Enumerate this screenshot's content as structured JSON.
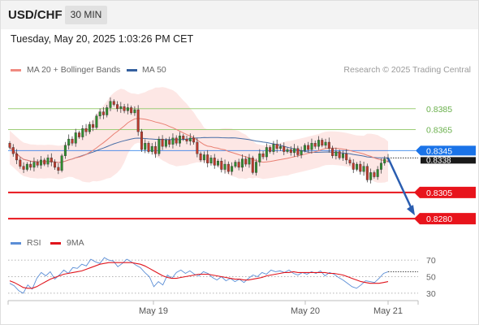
{
  "header": {
    "symbol": "USD/CHF",
    "timeframe": "30 MIN",
    "timestamp": "Tuesday, May 20, 2025 1:03:26 PM CET"
  },
  "legend": {
    "ma20_label": "MA 20 + Bollinger Bands",
    "ma50_label": "MA 50",
    "credit": "Research © 2025 Trading Central",
    "rsi_label": "RSI",
    "rsi_ma_label": "9MA"
  },
  "colors": {
    "ma20": "#e98073",
    "ma50": "#34609f",
    "bands_fill": "#fde3e0",
    "candle_up": "#2f8f2f",
    "candle_down": "#c0392b",
    "resistance": "#9dcd77",
    "support": "#e8141c",
    "current_price": "#1a73e8",
    "rsi": "#5b8ed6",
    "rsi_ma": "#e0141c",
    "forecast_arrow": "#2a5db0"
  },
  "chart_data": [
    {
      "type": "candlestick",
      "title": "USD/CHF",
      "timeframe": "30 MIN",
      "xlabels": [
        "May 19",
        "May 20",
        "May 21"
      ],
      "ylim": [
        0.827,
        0.8398
      ],
      "current_price": 0.8338,
      "levels": [
        {
          "label": "0.8385",
          "value": 0.8385,
          "kind": "resistance"
        },
        {
          "label": "0.8365",
          "value": 0.8365,
          "kind": "resistance"
        },
        {
          "label": "0.8345",
          "value": 0.8345,
          "kind": "pivot"
        },
        {
          "label": "0.8305",
          "value": 0.8305,
          "kind": "support"
        },
        {
          "label": "0.8280",
          "value": 0.828,
          "kind": "support"
        }
      ],
      "current_price_label": "0.8338",
      "forecast": {
        "from": 0.8338,
        "to": 0.828,
        "direction": "down"
      },
      "closes": [
        0.8348,
        0.8342,
        0.8336,
        0.833,
        0.8327,
        0.8332,
        0.8329,
        0.8334,
        0.8331,
        0.8336,
        0.8332,
        0.8338,
        0.8334,
        0.8329,
        0.8326,
        0.834,
        0.835,
        0.8356,
        0.8352,
        0.8362,
        0.8358,
        0.8366,
        0.8363,
        0.837,
        0.8367,
        0.8378,
        0.8382,
        0.8379,
        0.8386,
        0.8392,
        0.8389,
        0.8385,
        0.8387,
        0.8383,
        0.8386,
        0.8381,
        0.8384,
        0.8363,
        0.8346,
        0.8352,
        0.8344,
        0.8349,
        0.8342,
        0.8356,
        0.8349,
        0.8355,
        0.8351,
        0.8357,
        0.8352,
        0.8359,
        0.8356,
        0.8354,
        0.8357,
        0.8353,
        0.8342,
        0.8336,
        0.8341,
        0.8333,
        0.8338,
        0.8331,
        0.8335,
        0.8327,
        0.8332,
        0.8325,
        0.833,
        0.8334,
        0.8329,
        0.8337,
        0.8332,
        0.8338,
        0.8324,
        0.8334,
        0.8342,
        0.8339,
        0.8348,
        0.8344,
        0.8351,
        0.8347,
        0.8349,
        0.8344,
        0.8346,
        0.8343,
        0.8347,
        0.8341,
        0.8345,
        0.835,
        0.8346,
        0.8352,
        0.8349,
        0.8355,
        0.835,
        0.8353,
        0.8347,
        0.834,
        0.8344,
        0.8338,
        0.8342,
        0.8336,
        0.8333,
        0.8327,
        0.8332,
        0.8325,
        0.833,
        0.8317,
        0.8324,
        0.832,
        0.8327,
        0.8333,
        0.8337,
        0.8338
      ]
    },
    {
      "type": "line",
      "title": "RSI",
      "series": [
        {
          "name": "RSI",
          "values": [
            42,
            39,
            33,
            30,
            40,
            35,
            48,
            55,
            51,
            56,
            47,
            52,
            58,
            54,
            61,
            60,
            65,
            63,
            71,
            68,
            66,
            73,
            70,
            69,
            62,
            66,
            71,
            68,
            64,
            61,
            55,
            50,
            38,
            44,
            40,
            52,
            48,
            55,
            58,
            54,
            57,
            53,
            51,
            56,
            54,
            49,
            46,
            50,
            45,
            48,
            44,
            47,
            43,
            48,
            52,
            50,
            55,
            53,
            58,
            56,
            57,
            55,
            58,
            54,
            52,
            55,
            53,
            56,
            54,
            57,
            51,
            55,
            53,
            49,
            46,
            42,
            38,
            36,
            40,
            45,
            44,
            43,
            48,
            54,
            56
          ]
        },
        {
          "name": "9MA",
          "values": [
            45,
            43,
            40,
            37,
            36,
            36,
            38,
            41,
            44,
            47,
            49,
            51,
            53,
            54,
            55,
            56,
            57,
            59,
            61,
            63,
            65,
            66,
            67,
            67,
            67,
            67,
            67,
            67,
            66,
            65,
            63,
            60,
            57,
            54,
            51,
            49,
            48,
            48,
            49,
            50,
            51,
            52,
            53,
            53,
            53,
            52,
            51,
            50,
            49,
            48,
            47,
            47,
            46,
            46,
            47,
            48,
            49,
            51,
            52,
            53,
            54,
            55,
            55,
            56,
            55,
            55,
            55,
            55,
            55,
            55,
            55,
            54,
            54,
            53,
            52,
            50,
            48,
            46,
            44,
            43,
            42,
            42,
            42,
            43,
            44
          ]
        }
      ],
      "yticks": [
        30,
        50,
        70
      ],
      "ylim": [
        25,
        78
      ]
    }
  ]
}
